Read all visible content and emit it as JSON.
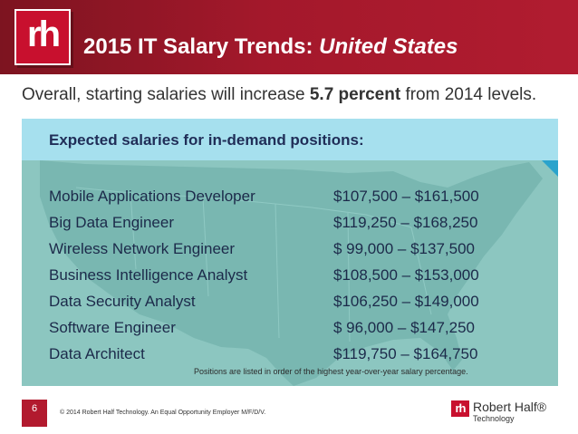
{
  "header": {
    "logo_text": "rh",
    "title_prefix": "2015 IT Salary Trends: ",
    "title_emphasis": "United States"
  },
  "subtitle": {
    "before": "Overall, starting salaries will increase ",
    "highlight": "5.7 percent",
    "after": " from 2014 levels."
  },
  "panel": {
    "heading": "Expected salaries for in-demand positions:",
    "rows": [
      {
        "position": "Mobile Applications Developer",
        "salary": "$107,500 – $161,500"
      },
      {
        "position": "Big Data Engineer",
        "salary": "$119,250 – $168,250"
      },
      {
        "position": "Wireless Network Engineer",
        "salary": "$  99,000 – $137,500"
      },
      {
        "position": "Business Intelligence Analyst",
        "salary": "$108,500 – $153,000"
      },
      {
        "position": "Data Security Analyst",
        "salary": "$106,250 – $149,000"
      },
      {
        "position": "Software Engineer",
        "salary": "$  96,000 – $147,250"
      },
      {
        "position": "Data Architect",
        "salary": "$119,750 – $164,750"
      }
    ],
    "note": "Positions are listed in order of the highest year-over-year salary percentage."
  },
  "footer": {
    "page_number": "6",
    "copyright": "© 2014 Robert Half Technology. An Equal Opportunity Employer M/F/D/V.",
    "brand_mark": "rh",
    "brand_name": "Robert Half®",
    "brand_sub": "Technology"
  },
  "colors": {
    "header_red": "#a3182b",
    "panel_top": "#a6e0ee",
    "panel_body": "#8cc6c0",
    "heading_navy": "#202e58"
  }
}
